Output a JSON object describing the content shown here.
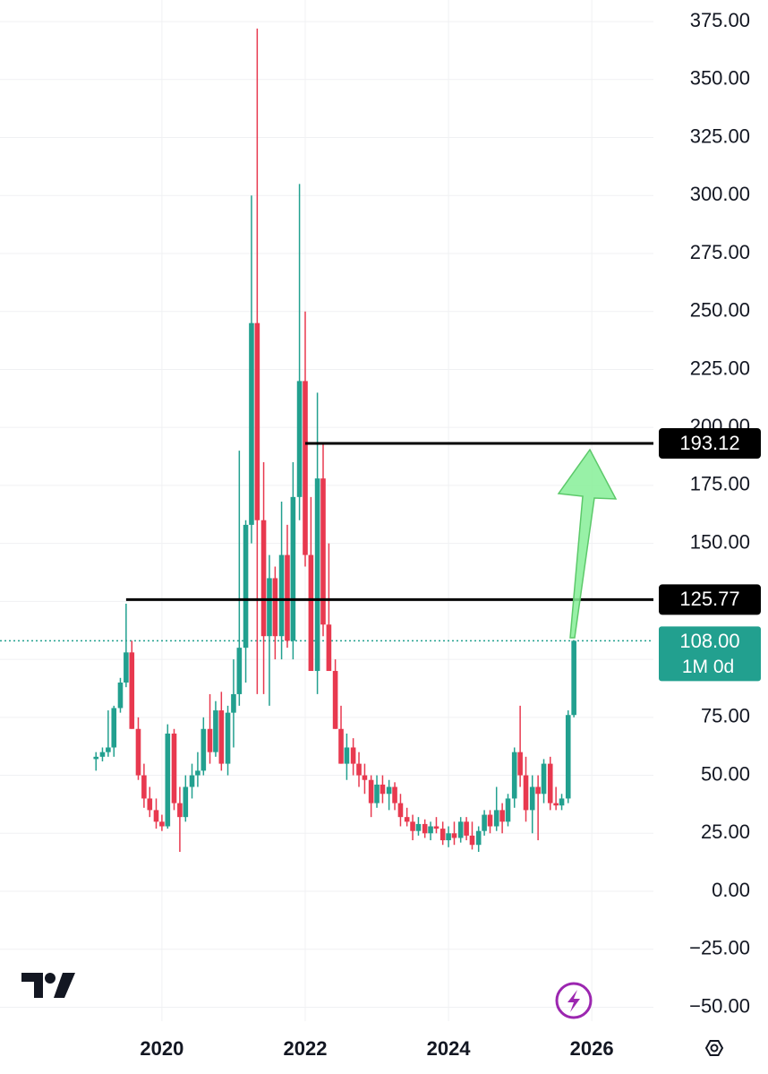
{
  "chart_data": {
    "type": "candlestick",
    "x": [
      2019.08,
      2019.17,
      2019.25,
      2019.33,
      2019.42,
      2019.5,
      2019.58,
      2019.67,
      2019.75,
      2019.83,
      2019.92,
      2020,
      2020.08,
      2020.17,
      2020.25,
      2020.33,
      2020.42,
      2020.5,
      2020.58,
      2020.67,
      2020.75,
      2020.83,
      2020.92,
      2021,
      2021.08,
      2021.17,
      2021.25,
      2021.33,
      2021.42,
      2021.5,
      2021.58,
      2021.67,
      2021.75,
      2021.83,
      2021.92,
      2022,
      2022.08,
      2022.17,
      2022.25,
      2022.33,
      2022.42,
      2022.5,
      2022.58,
      2022.67,
      2022.75,
      2022.83,
      2022.92,
      2023,
      2023.08,
      2023.17,
      2023.25,
      2023.33,
      2023.42,
      2023.5,
      2023.58,
      2023.67,
      2023.75,
      2023.83,
      2023.92,
      2024,
      2024.08,
      2024.17,
      2024.25,
      2024.33,
      2024.42,
      2024.5,
      2024.58,
      2024.67,
      2024.75,
      2024.83,
      2024.92,
      2025,
      2025.08,
      2025.17,
      2025.25,
      2025.33,
      2025.42,
      2025.5,
      2025.58,
      2025.67,
      2025.75
    ],
    "open": [
      57,
      58,
      60,
      62,
      79,
      90,
      103,
      70,
      50,
      40,
      35,
      30,
      28,
      68,
      38,
      32,
      45,
      50,
      52,
      70,
      60,
      78,
      55,
      77,
      85,
      105,
      158,
      245,
      160,
      110,
      135,
      110,
      145,
      108,
      170,
      220,
      145,
      95,
      178,
      115,
      95,
      70,
      55,
      62,
      55,
      50,
      48,
      38,
      46,
      42,
      45,
      38,
      32,
      30,
      26,
      29,
      25,
      28,
      27,
      22,
      25,
      23,
      30,
      24,
      20,
      26,
      33,
      28,
      35,
      30,
      40,
      60,
      50,
      35,
      45,
      42,
      55,
      38,
      37,
      40,
      76
    ],
    "high": [
      60,
      62,
      78,
      80,
      92,
      124,
      108,
      75,
      55,
      45,
      40,
      33,
      72,
      70,
      45,
      50,
      55,
      60,
      75,
      85,
      82,
      86,
      80,
      100,
      190,
      160,
      300,
      372,
      185,
      145,
      140,
      168,
      158,
      185,
      305,
      250,
      170,
      215,
      193,
      150,
      100,
      80,
      68,
      66,
      60,
      55,
      50,
      50,
      50,
      48,
      47,
      42,
      36,
      33,
      32,
      31,
      30,
      32,
      30,
      28,
      30,
      32,
      32,
      30,
      28,
      35,
      35,
      45,
      38,
      42,
      62,
      80,
      58,
      50,
      50,
      57,
      58,
      45,
      42,
      78,
      108
    ],
    "low": [
      52,
      56,
      58,
      58,
      77,
      88,
      70,
      48,
      36,
      32,
      27,
      26,
      27,
      35,
      17,
      30,
      40,
      45,
      50,
      55,
      58,
      52,
      50,
      62,
      80,
      90,
      150,
      85,
      85,
      80,
      100,
      100,
      105,
      100,
      160,
      140,
      95,
      85,
      110,
      95,
      70,
      55,
      48,
      50,
      45,
      42,
      32,
      36,
      38,
      35,
      35,
      28,
      28,
      22,
      24,
      23,
      22,
      25,
      20,
      19,
      20,
      21,
      22,
      18,
      17,
      24,
      25,
      26,
      25,
      28,
      36,
      45,
      30,
      25,
      22,
      38,
      35,
      35,
      35,
      38,
      75
    ],
    "close": [
      58,
      60,
      62,
      79,
      90,
      103,
      70,
      50,
      40,
      35,
      30,
      28,
      68,
      38,
      32,
      45,
      50,
      52,
      70,
      60,
      78,
      55,
      77,
      85,
      105,
      158,
      245,
      160,
      110,
      135,
      110,
      145,
      108,
      170,
      220,
      145,
      95,
      178,
      115,
      95,
      70,
      55,
      62,
      55,
      50,
      48,
      38,
      46,
      42,
      45,
      38,
      32,
      30,
      26,
      29,
      25,
      28,
      27,
      22,
      25,
      23,
      30,
      24,
      20,
      26,
      33,
      28,
      35,
      30,
      40,
      60,
      50,
      35,
      45,
      42,
      55,
      38,
      37,
      40,
      76,
      108
    ],
    "up_color": "#22a08f",
    "down_color": "#e8394f",
    "xlim": [
      2017.74,
      2026.86
    ],
    "xticks": [
      2020,
      2022,
      2024,
      2026
    ],
    "ylim": [
      -56,
      384.3
    ],
    "yticks": [
      {
        "value": 375,
        "label": "375.00"
      },
      {
        "value": 350,
        "label": "350.00"
      },
      {
        "value": 325,
        "label": "325.00"
      },
      {
        "value": 300,
        "label": "300.00"
      },
      {
        "value": 275,
        "label": "275.00"
      },
      {
        "value": 250,
        "label": "250.00"
      },
      {
        "value": 225,
        "label": "225.00"
      },
      {
        "value": 200,
        "label": "200.00"
      },
      {
        "value": 175,
        "label": "175.00"
      },
      {
        "value": 150,
        "label": "150.00"
      },
      {
        "value": 125,
        "label": "125.00"
      },
      {
        "value": 100,
        "label": "100.00"
      },
      {
        "value": 75,
        "label": "75.00"
      },
      {
        "value": 50,
        "label": "50.00"
      },
      {
        "value": 25,
        "label": "25.00"
      },
      {
        "value": 0,
        "label": "0.00"
      },
      {
        "value": -25,
        "label": "−25.00"
      },
      {
        "value": -50,
        "label": "−50.00"
      }
    ],
    "grid": true,
    "levels": [
      {
        "value": 193.12,
        "x": 2022
      },
      {
        "value": 125.77,
        "x": 2019.5
      }
    ],
    "last": {
      "value": 108,
      "label": "108.00"
    },
    "countdown": "1M 0d"
  }
}
